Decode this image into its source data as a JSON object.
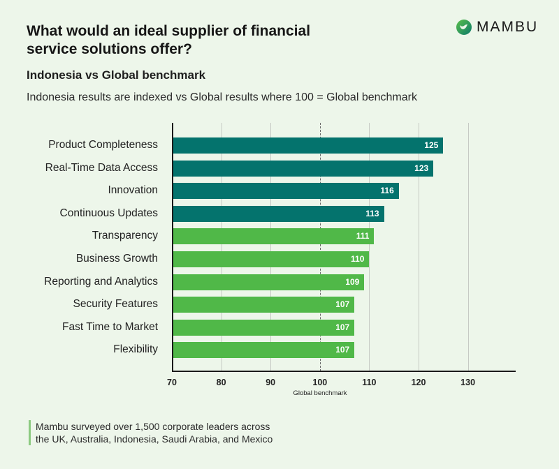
{
  "header": {
    "title": "What would an ideal supplier of financial service solutions offer?",
    "subtitle": "Indonesia vs Global benchmark",
    "description": "Indonesia results are indexed vs Global results where 100 = Global benchmark",
    "logo_text": "MAMBU"
  },
  "footer": {
    "note_line1": "Mambu surveyed over 1,500 corporate leaders across",
    "note_line2": "the UK, Australia, Indonesia, Saudi Arabia, and Mexico"
  },
  "colors": {
    "background": "#edf6ea",
    "bar_dark": "#04736d",
    "bar_light": "#50b848",
    "grid": "#c6cac4"
  },
  "chart_data": {
    "type": "bar",
    "orientation": "horizontal",
    "title": "Indonesia vs Global benchmark",
    "xlabel": "Global benchmark",
    "ylabel": "",
    "xlim": [
      70,
      139
    ],
    "xticks": [
      70,
      80,
      90,
      100,
      110,
      120,
      130
    ],
    "reference_line": 100,
    "grid": true,
    "categories": [
      "Product Completeness",
      "Real-Time Data Access",
      "Innovation",
      "Continuous Updates",
      "Transparency",
      "Business Growth",
      "Reporting and Analytics",
      "Security Features",
      "Fast Time to Market",
      "Flexibility"
    ],
    "values": [
      125,
      123,
      116,
      113,
      111,
      110,
      109,
      107,
      107,
      107
    ],
    "bar_colors": [
      "#04736d",
      "#04736d",
      "#04736d",
      "#04736d",
      "#50b848",
      "#50b848",
      "#50b848",
      "#50b848",
      "#50b848",
      "#50b848"
    ]
  }
}
